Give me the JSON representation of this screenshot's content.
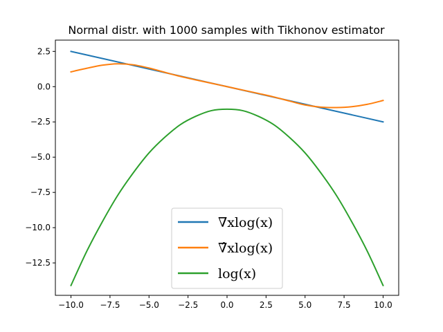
{
  "chart_data": {
    "type": "line",
    "title": "Normal distr. with 1000 samples with Tikhonov estimator",
    "xlabel": "",
    "ylabel": "",
    "xlim": [
      -11,
      11
    ],
    "ylim": [
      -14.8,
      3.3
    ],
    "x_ticks": [
      "−10.0",
      "−7.5",
      "−5.0",
      "−2.5",
      "0.0",
      "2.5",
      "5.0",
      "7.5",
      "10.0"
    ],
    "x_tick_values": [
      -10,
      -7.5,
      -5,
      -2.5,
      0,
      2.5,
      5,
      7.5,
      10
    ],
    "y_ticks": [
      "−12.5",
      "−10.0",
      "−7.5",
      "−5.0",
      "−2.5",
      "0.0",
      "2.5"
    ],
    "y_tick_values": [
      -12.5,
      -10,
      -7.5,
      -5,
      -2.5,
      0,
      2.5
    ],
    "legend_placement": "lower-center",
    "grid": false,
    "series": [
      {
        "name": "∇xlog(x)",
        "color": "#1f77b4",
        "x": [
          -10,
          -8,
          -6,
          -4,
          -2,
          0,
          2,
          4,
          6,
          8,
          10
        ],
        "y": [
          2.5,
          2.0,
          1.5,
          1.0,
          0.5,
          0.0,
          -0.5,
          -1.0,
          -1.5,
          -2.0,
          -2.5
        ]
      },
      {
        "name": "∇̂xlog(x)",
        "color": "#ff7f0e",
        "x": [
          -10,
          -9,
          -8,
          -7,
          -6,
          -5,
          -4,
          -3,
          -2,
          -1,
          0,
          1,
          2,
          3,
          4,
          5,
          6,
          7,
          8,
          9,
          10
        ],
        "y": [
          1.05,
          1.3,
          1.52,
          1.62,
          1.55,
          1.32,
          1.02,
          0.73,
          0.48,
          0.24,
          0.0,
          -0.24,
          -0.48,
          -0.73,
          -1.02,
          -1.3,
          -1.45,
          -1.48,
          -1.42,
          -1.25,
          -0.98
        ]
      },
      {
        "name": "log(x)",
        "color": "#2ca02c",
        "x": [
          -10,
          -9,
          -8,
          -7,
          -6,
          -5,
          -4,
          -3,
          -2,
          -1,
          0,
          1,
          2,
          3,
          4,
          5,
          6,
          7,
          8,
          9,
          10
        ],
        "y": [
          -14.1,
          -11.7,
          -9.6,
          -7.7,
          -6.1,
          -4.7,
          -3.6,
          -2.7,
          -2.1,
          -1.7,
          -1.6,
          -1.7,
          -2.1,
          -2.7,
          -3.6,
          -4.7,
          -6.1,
          -7.7,
          -9.6,
          -11.7,
          -14.1
        ]
      }
    ]
  }
}
